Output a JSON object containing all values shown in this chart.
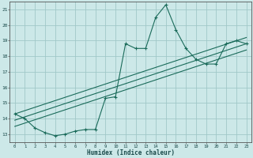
{
  "xlabel": "Humidex (Indice chaleur)",
  "xlim": [
    -0.5,
    23.5
  ],
  "ylim": [
    12.5,
    21.5
  ],
  "yticks": [
    13,
    14,
    15,
    16,
    17,
    18,
    19,
    20,
    21
  ],
  "xticks": [
    0,
    1,
    2,
    3,
    4,
    5,
    6,
    7,
    8,
    9,
    10,
    11,
    12,
    13,
    14,
    15,
    16,
    17,
    18,
    19,
    20,
    21,
    22,
    23
  ],
  "background_color": "#cce8e8",
  "grid_color": "#a0c8c8",
  "line_color": "#1a6b5a",
  "series": [
    [
      0,
      14.3
    ],
    [
      1,
      14.0
    ],
    [
      2,
      13.4
    ],
    [
      3,
      13.1
    ],
    [
      4,
      12.9
    ],
    [
      5,
      13.0
    ],
    [
      6,
      13.2
    ],
    [
      7,
      13.3
    ],
    [
      8,
      13.3
    ],
    [
      9,
      15.3
    ],
    [
      10,
      15.4
    ],
    [
      11,
      18.8
    ],
    [
      12,
      18.5
    ],
    [
      13,
      18.5
    ],
    [
      14,
      20.5
    ],
    [
      15,
      21.3
    ],
    [
      16,
      19.7
    ],
    [
      17,
      18.5
    ],
    [
      18,
      17.8
    ],
    [
      19,
      17.5
    ],
    [
      20,
      17.5
    ],
    [
      21,
      18.8
    ],
    [
      22,
      19.0
    ],
    [
      23,
      18.8
    ]
  ],
  "trend_lines": [
    {
      "x": [
        0,
        23
      ],
      "y": [
        14.3,
        19.2
      ]
    },
    {
      "x": [
        0,
        23
      ],
      "y": [
        13.5,
        18.4
      ]
    },
    {
      "x": [
        0,
        23
      ],
      "y": [
        13.9,
        18.8
      ]
    }
  ]
}
